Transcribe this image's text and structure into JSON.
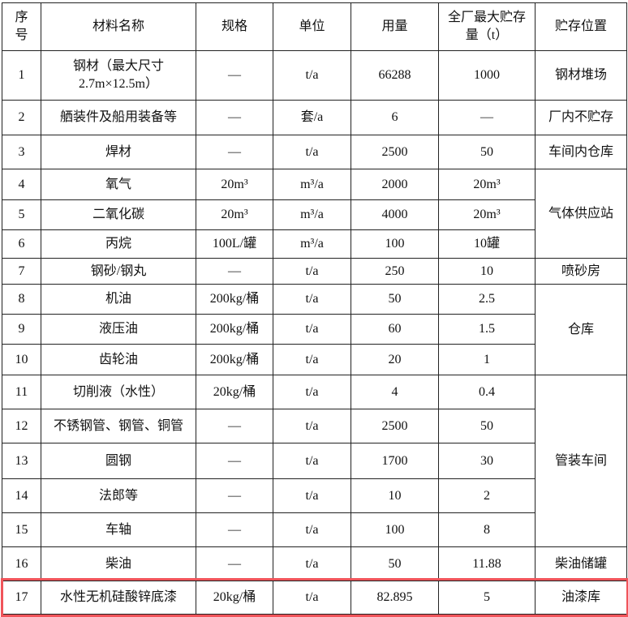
{
  "header": [
    "序号",
    "材料名称",
    "规格",
    "单位",
    "用量",
    "全厂最大贮存量（t）",
    "贮存位置"
  ],
  "rows": [
    {
      "no": "1",
      "name": "钢材（最大尺寸2.7m×12.5m）",
      "spec": "—",
      "unit": "t/a",
      "usage": "66288",
      "max_storage": "1000",
      "location": "钢材堆场"
    },
    {
      "no": "2",
      "name": "舾装件及船用装备等",
      "spec": "—",
      "unit": "套/a",
      "usage": "6",
      "max_storage": "—",
      "location": "厂内不贮存"
    },
    {
      "no": "3",
      "name": "焊材",
      "spec": "—",
      "unit": "t/a",
      "usage": "2500",
      "max_storage": "50",
      "location": "车间内仓库"
    },
    {
      "no": "4",
      "name": "氧气",
      "spec": "20m³",
      "unit": "m³/a",
      "usage": "2000",
      "max_storage": "20m³",
      "location": "气体供应站",
      "span": 3
    },
    {
      "no": "5",
      "name": "二氧化碳",
      "spec": "20m³",
      "unit": "m³/a",
      "usage": "4000",
      "max_storage": "20m³"
    },
    {
      "no": "6",
      "name": "丙烷",
      "spec": "100L/罐",
      "unit": "m³/a",
      "usage": "100",
      "max_storage": "10罐"
    },
    {
      "no": "7",
      "name": "钢砂/钢丸",
      "spec": "—",
      "unit": "t/a",
      "usage": "250",
      "max_storage": "10",
      "location": "喷砂房"
    },
    {
      "no": "8",
      "name": "机油",
      "spec": "200kg/桶",
      "unit": "t/a",
      "usage": "50",
      "max_storage": "2.5",
      "location": "仓库",
      "span": 3
    },
    {
      "no": "9",
      "name": "液压油",
      "spec": "200kg/桶",
      "unit": "t/a",
      "usage": "60",
      "max_storage": "1.5"
    },
    {
      "no": "10",
      "name": "齿轮油",
      "spec": "200kg/桶",
      "unit": "t/a",
      "usage": "20",
      "max_storage": "1"
    },
    {
      "no": "11",
      "name": "切削液（水性）",
      "spec": "20kg/桶",
      "unit": "t/a",
      "usage": "4",
      "max_storage": "0.4",
      "location": "管装车间",
      "span": 5
    },
    {
      "no": "12",
      "name": "不锈钢管、钢管、铜管",
      "spec": "—",
      "unit": "t/a",
      "usage": "2500",
      "max_storage": "50"
    },
    {
      "no": "13",
      "name": "圆钢",
      "spec": "—",
      "unit": "t/a",
      "usage": "1700",
      "max_storage": "30"
    },
    {
      "no": "14",
      "name": "法郎等",
      "spec": "—",
      "unit": "t/a",
      "usage": "10",
      "max_storage": "2"
    },
    {
      "no": "15",
      "name": "车轴",
      "spec": "—",
      "unit": "t/a",
      "usage": "100",
      "max_storage": "8"
    },
    {
      "no": "16",
      "name": "柴油",
      "spec": "—",
      "unit": "t/a",
      "usage": "50",
      "max_storage": "11.88",
      "location": "柴油储罐"
    },
    {
      "no": "17",
      "name": "水性无机硅酸锌底漆",
      "spec": "20kg/桶",
      "unit": "t/a",
      "usage": "82.895",
      "max_storage": "5",
      "location": "油漆库",
      "highlighted": true
    }
  ],
  "highlight_color": "#f0545a"
}
